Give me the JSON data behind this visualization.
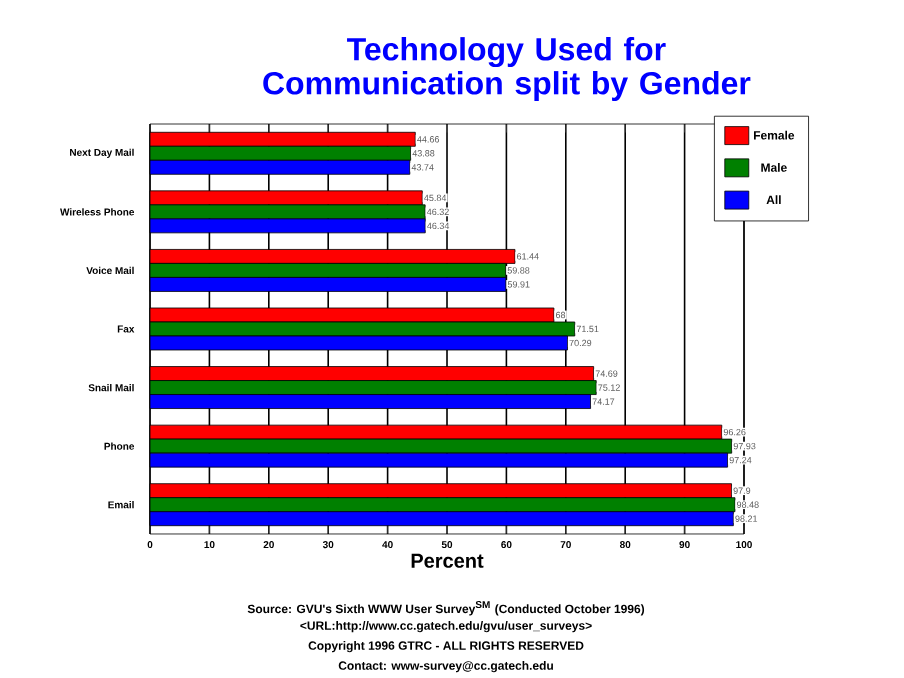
{
  "chart_data": {
    "type": "bar",
    "orientation": "horizontal",
    "title": "Technology Used for Communication split by Gender",
    "xlabel": "Percent",
    "categories": [
      "Next Day Mail",
      "Wireless Phone",
      "Voice Mail",
      "Fax",
      "Snail Mail",
      "Phone",
      "Email"
    ],
    "series": [
      {
        "name": "Female",
        "color": "#ff0000",
        "values": [
          44.66,
          45.84,
          61.44,
          68,
          74.69,
          96.26,
          97.9
        ]
      },
      {
        "name": "Male",
        "color": "#008000",
        "values": [
          43.88,
          46.32,
          59.88,
          71.51,
          75.12,
          97.93,
          98.48
        ]
      },
      {
        "name": "All",
        "color": "#0000ff",
        "values": [
          43.74,
          46.34,
          59.91,
          70.29,
          74.17,
          97.24,
          98.21
        ]
      }
    ],
    "xlim": [
      0,
      100
    ],
    "xticks": [
      0,
      10,
      20,
      30,
      40,
      50,
      60,
      70,
      80,
      90,
      100
    ],
    "grid": "x",
    "legend": "top right",
    "data_labels": true,
    "annotations": [
      "Source: GVU's Sixth WWW User Survey$^{SM}$ (Conducted October 1996)",
      "<URL:http://www.cc.gatech.edu/gvu/user_surveys>",
      "Copyright 1996 GTRC - ALL RIGHTS RESERVED",
      "Contact: www-survey@cc.gatech.edu"
    ]
  }
}
